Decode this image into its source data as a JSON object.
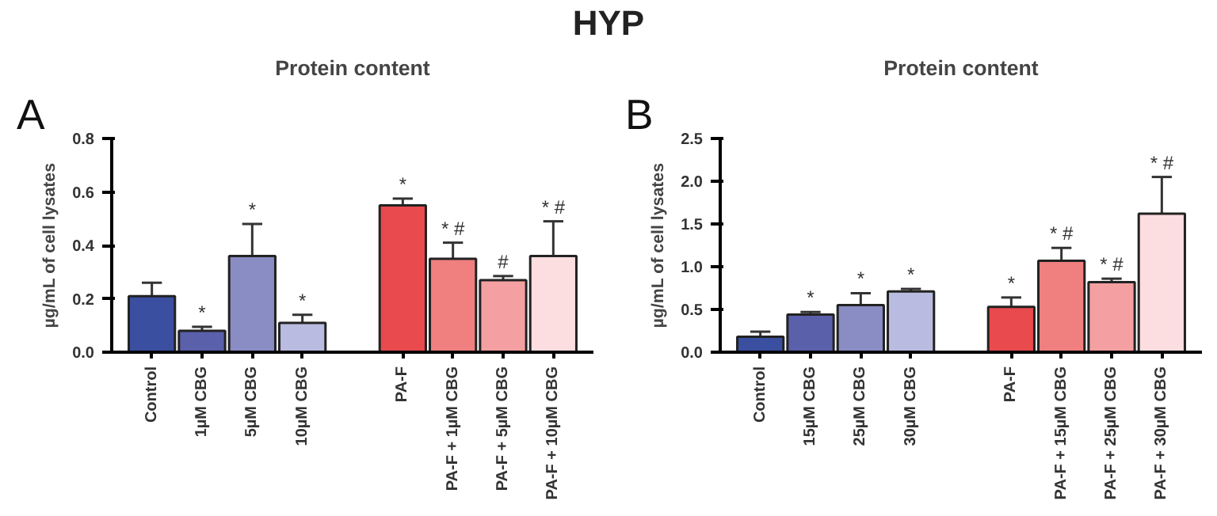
{
  "chart_data": [
    {
      "type": "bar",
      "title": "Protein content",
      "ylabel": "µg/mL of cell lysates",
      "categories": [
        "Control",
        "1µM CBG",
        "5µM CBG",
        "10µM CBG",
        null,
        "PA-F",
        "PA-F + 1µM CBG",
        "PA-F + 5µM CBG",
        "PA-F + 10µM CBG"
      ],
      "values": [
        0.21,
        0.08,
        0.36,
        0.11,
        null,
        0.55,
        0.35,
        0.27,
        0.36
      ],
      "errors": [
        [
          0.21,
          0.26
        ],
        [
          0.08,
          0.095
        ],
        [
          0.36,
          0.48
        ],
        [
          0.11,
          0.14
        ],
        null,
        [
          0.55,
          0.575
        ],
        [
          0.35,
          0.41
        ],
        [
          0.27,
          0.285
        ],
        [
          0.36,
          0.49
        ]
      ],
      "colors": [
        "#3a4fa0",
        "#5a60aa",
        "#8a8cc4",
        "#babbe0",
        "#ffffff",
        "#e84a4e",
        "#f08080",
        "#f4a0a2",
        "#fcdde0"
      ],
      "ylim": [
        0,
        0.8
      ],
      "yticks": [
        {
          "value": 0,
          "label": "0.0"
        },
        0.2,
        0.4,
        0.6,
        0.8
      ],
      "grid": false,
      "annotations": [
        "HYP",
        "A",
        {
          "text": "*",
          "x": "1µM CBG",
          "y": 0.095
        },
        {
          "text": "*",
          "x": "5µM CBG",
          "y": 0.48
        },
        {
          "text": "*",
          "x": "10µM CBG",
          "y": 0.14
        },
        {
          "text": "*",
          "x": "PA-F",
          "y": 0.575
        },
        {
          "text": "* #",
          "x": "PA-F + 1µM CBG",
          "y": 0.41
        },
        {
          "text": "#",
          "x": "PA-F + 5µM CBG",
          "y": 0.285
        },
        {
          "text": "* #",
          "x": "PA-F + 10µM CBG",
          "y": 0.49
        }
      ]
    },
    {
      "type": "bar",
      "title": "Protein content",
      "ylabel": "µg/mL of cell lysates",
      "categories": [
        "Control",
        "15µM CBG",
        "25µM CBG",
        "30µM CBG",
        null,
        "PA-F",
        "PA-F + 15µM CBG",
        "PA-F + 25µM CBG",
        "PA-F + 30µM CBG"
      ],
      "values": [
        0.18,
        0.44,
        0.55,
        0.71,
        null,
        0.53,
        1.07,
        0.82,
        1.62
      ],
      "errors": [
        [
          0.18,
          0.24
        ],
        [
          0.44,
          0.47
        ],
        [
          0.55,
          0.69
        ],
        [
          0.71,
          0.74
        ],
        null,
        [
          0.53,
          0.64
        ],
        [
          1.07,
          1.22
        ],
        [
          0.82,
          0.86
        ],
        [
          1.62,
          2.05
        ]
      ],
      "colors": [
        "#3a4fa0",
        "#5a60aa",
        "#8a8cc4",
        "#babbe0",
        "#ffffff",
        "#e84a4e",
        "#f08080",
        "#f4a0a2",
        "#fcdde0"
      ],
      "ylim": [
        0,
        2.5
      ],
      "yticks": [
        {
          "value": 0,
          "label": "0.0"
        },
        0.5,
        {
          "value": 1,
          "label": "1.0"
        },
        1.5,
        {
          "value": 2,
          "label": "2.0"
        },
        2.5
      ],
      "grid": false,
      "annotations": [
        "B",
        {
          "text": "*",
          "x": "15µM CBG",
          "y": 0.47
        },
        {
          "text": "*",
          "x": "25µM CBG",
          "y": 0.69
        },
        {
          "text": "*",
          "x": "30µM CBG",
          "y": 0.74
        },
        {
          "text": "*",
          "x": "PA-F",
          "y": 0.64
        },
        {
          "text": "* #",
          "x": "PA-F + 15µM CBG",
          "y": 1.22
        },
        {
          "text": "* #",
          "x": "PA-F + 25µM CBG",
          "y": 0.86
        },
        {
          "text": "* #",
          "x": "PA-F + 30µM CBG",
          "y": 2.05
        }
      ]
    }
  ]
}
